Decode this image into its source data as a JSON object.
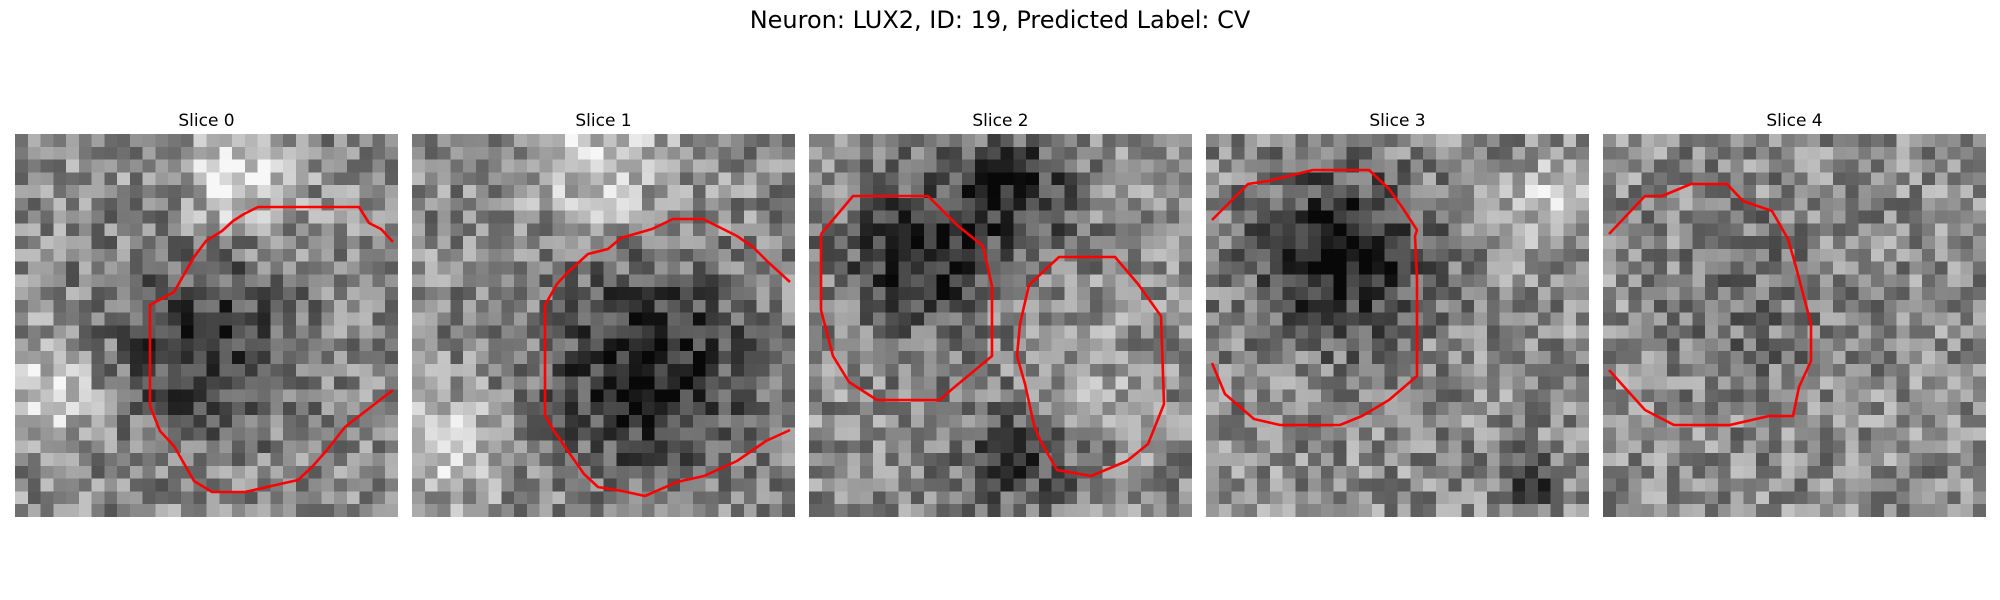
{
  "figure": {
    "title": "Neuron: LUX2, ID: 19, Predicted Label: CV"
  },
  "panels": [
    {
      "title": "Slice 0"
    },
    {
      "title": "Slice 1"
    },
    {
      "title": "Slice 2"
    },
    {
      "title": "Slice 3"
    },
    {
      "title": "Slice 4"
    }
  ],
  "colors": {
    "contour": "#ff0000",
    "background": "#ffffff"
  }
}
